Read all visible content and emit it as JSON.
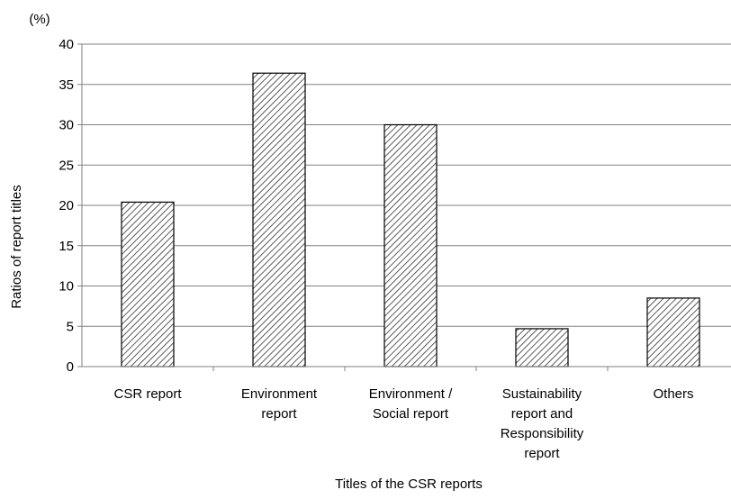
{
  "chart_data": {
    "type": "bar",
    "categories": [
      [
        "CSR report"
      ],
      [
        "Environment",
        "report"
      ],
      [
        "Environment /",
        "Social report"
      ],
      [
        "Sustainability",
        "report and",
        "Responsibility",
        "report"
      ],
      [
        "Others"
      ]
    ],
    "values": [
      20.4,
      36.4,
      30.0,
      4.7,
      8.5
    ],
    "xlabel": "Titles of the CSR reports",
    "ylabel": "Ratios of report titles",
    "yunit": "(%)",
    "ylim": [
      0,
      40
    ],
    "yticks": [
      "0",
      "5",
      "10",
      "15",
      "20",
      "25",
      "30",
      "35",
      "40"
    ],
    "grid": true,
    "bar_fill": "diagonal-hatch",
    "colors": {
      "grid": "#808080",
      "bar_stroke": "#000000",
      "hatch": "#333333"
    }
  }
}
